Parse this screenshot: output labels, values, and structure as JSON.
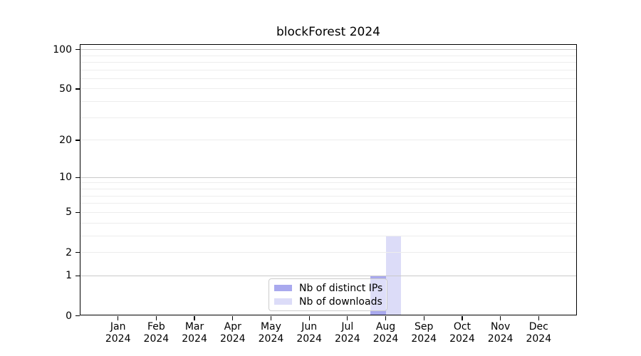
{
  "chart_data": {
    "type": "bar",
    "title": "blockForest 2024",
    "categories": [
      "Jan",
      "Feb",
      "Mar",
      "Apr",
      "May",
      "Jun",
      "Jul",
      "Aug",
      "Sep",
      "Oct",
      "Nov",
      "Dec"
    ],
    "x_tick_year": "2024",
    "series": [
      {
        "name": "Nb of distinct IPs",
        "color": "#a9a9ee",
        "values": [
          0,
          0,
          0,
          0,
          0,
          0,
          0,
          1,
          0,
          0,
          0,
          0
        ]
      },
      {
        "name": "Nb of downloads",
        "color": "#dcdcf8",
        "values": [
          0,
          0,
          0,
          0,
          0,
          0,
          0,
          3,
          0,
          0,
          0,
          0
        ]
      }
    ],
    "y_ticks": [
      0,
      1,
      2,
      5,
      10,
      20,
      50,
      100
    ],
    "y_major_gridlines": [
      1,
      10,
      100
    ],
    "y_minor_gridlines": [
      2,
      3,
      4,
      5,
      6,
      7,
      8,
      9,
      20,
      30,
      40,
      50,
      60,
      70,
      80,
      90
    ],
    "y_scale": "log10(1+v)",
    "ylim": [
      0,
      110
    ],
    "xlabel": "",
    "ylabel": "",
    "grid": true,
    "legend_position": "lower center",
    "colors": {
      "grid_major": "#c9c9c9",
      "grid_minor": "#ededed",
      "axis": "#000000",
      "legend_border": "#cccccc"
    }
  }
}
